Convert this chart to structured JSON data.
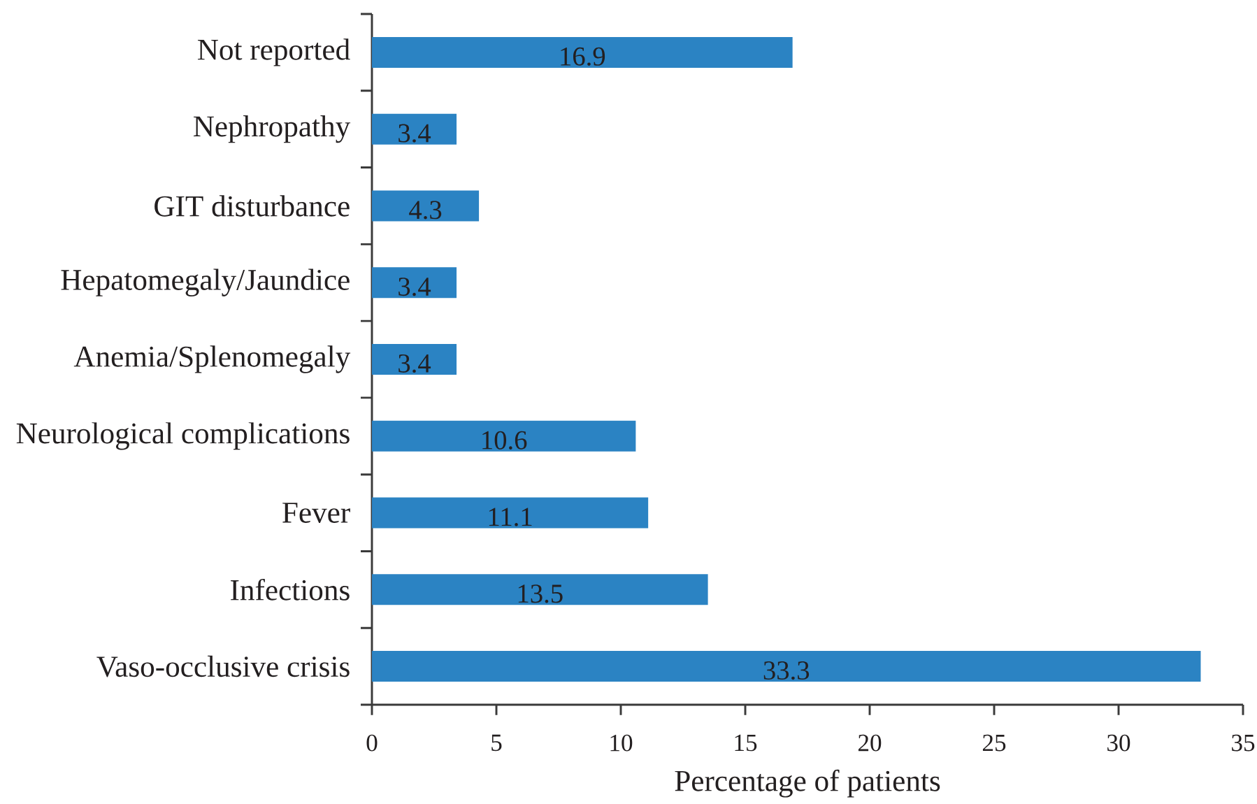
{
  "chart_data": {
    "type": "bar",
    "orientation": "horizontal",
    "categories": [
      "Not reported",
      "Nephropathy",
      "GIT disturbance",
      "Hepatomegaly/Jaundice",
      "Anemia/Splenomegaly",
      "Neurological complications",
      "Fever",
      "Infections",
      "Vaso-occlusive crisis"
    ],
    "values": [
      16.9,
      3.4,
      4.3,
      3.4,
      3.4,
      10.6,
      11.1,
      13.5,
      33.3
    ],
    "color": "#2b83c3",
    "data_labels": true,
    "xlabel": "Percentage of patients",
    "xlim": [
      0,
      35
    ],
    "xticks": [
      0,
      5,
      10,
      15,
      20,
      25,
      30,
      35
    ]
  }
}
